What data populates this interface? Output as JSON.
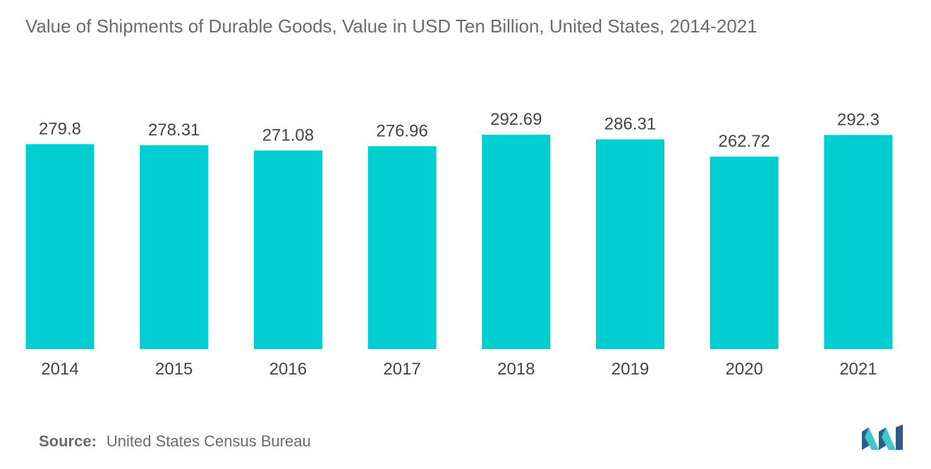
{
  "chart_title": "Value of Shipments of Durable Goods, Value in USD Ten Billion, United States, 2014-2021",
  "source": {
    "label": "Source:",
    "text": "United States Census Bureau"
  },
  "colors": {
    "bar": "#00ced1",
    "text": "#444444",
    "muted": "#6b6b6b",
    "logo_dark": "#2f5b8a",
    "logo_light": "#3ec6c8"
  },
  "logo_icon": "mordor-intelligence-logo-icon",
  "chart_data": {
    "type": "bar",
    "title": "Value of Shipments of Durable Goods, Value in USD Ten Billion, United States, 2014-2021",
    "xlabel": "",
    "ylabel": "",
    "categories": [
      "2014",
      "2015",
      "2016",
      "2017",
      "2018",
      "2019",
      "2020",
      "2021"
    ],
    "values": [
      279.8,
      278.31,
      271.08,
      276.96,
      292.69,
      286.31,
      262.72,
      292.3
    ],
    "value_labels": [
      "279.8",
      "278.31",
      "271.08",
      "276.96",
      "292.69",
      "286.31",
      "262.72",
      "292.3"
    ],
    "ylim": [
      0,
      292.69
    ],
    "grid": false,
    "legend": "none"
  }
}
